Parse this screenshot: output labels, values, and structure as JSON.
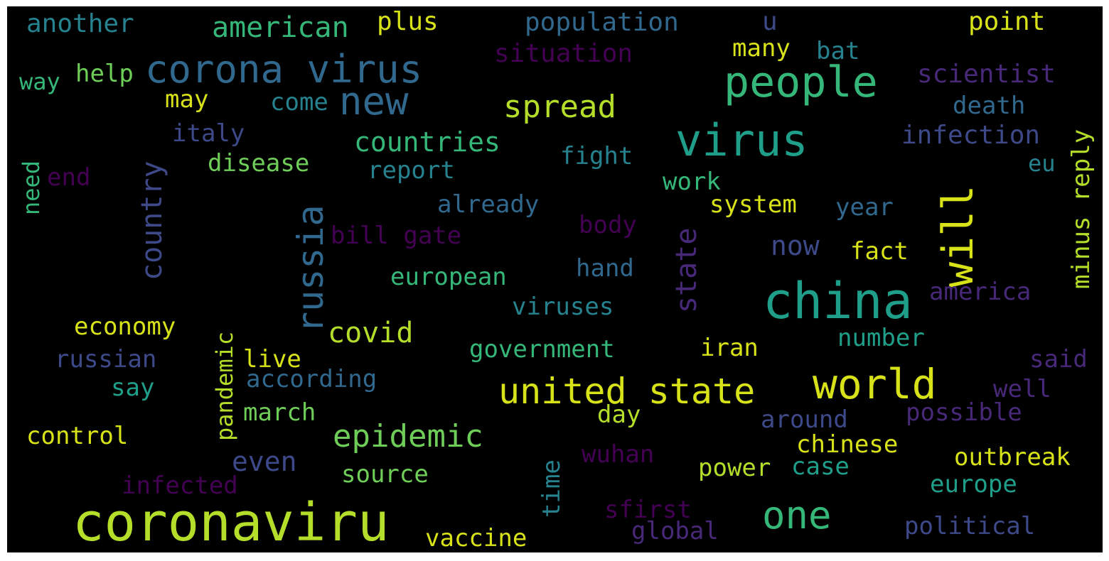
{
  "palette": {
    "background": "#000000",
    "yellow": "#d8e219",
    "lime": "#b5de2b",
    "green": "#6ece58",
    "teal_green": "#35b779",
    "teal": "#1f9e89",
    "cyan": "#26828e",
    "blue": "#31688e",
    "indigo": "#3e4989",
    "purple": "#482878",
    "dark_purple": "#440154"
  },
  "words": {
    "coronaviru": {
      "text": "coronaviru",
      "color": "#b5de2b"
    },
    "china": {
      "text": "china",
      "color": "#1f9e89"
    },
    "virus": {
      "text": "virus",
      "color": "#1f9e89"
    },
    "will": {
      "text": "will",
      "color": "#d8e219"
    },
    "people": {
      "text": "people",
      "color": "#35b779"
    },
    "corona_virus": {
      "text": "corona virus",
      "color": "#31688e"
    },
    "world": {
      "text": "world",
      "color": "#d8e219"
    },
    "united_state": {
      "text": "united state",
      "color": "#d8e219"
    },
    "one": {
      "text": "one",
      "color": "#35b779"
    },
    "new": {
      "text": "new",
      "color": "#31688e"
    },
    "russia": {
      "text": "russia",
      "color": "#31688e"
    },
    "spread": {
      "text": "spread",
      "color": "#b5de2b"
    },
    "epidemic": {
      "text": "epidemic",
      "color": "#6ece58"
    },
    "country": {
      "text": "country",
      "color": "#3e4989"
    },
    "american": {
      "text": "american",
      "color": "#35b779"
    },
    "covid": {
      "text": "covid",
      "color": "#b5de2b"
    },
    "countries": {
      "text": "countries",
      "color": "#35b779"
    },
    "state": {
      "text": "state",
      "color": "#482878"
    },
    "population": {
      "text": "population",
      "color": "#31688e"
    },
    "scientist": {
      "text": "scientist",
      "color": "#482878"
    },
    "infection": {
      "text": "infection",
      "color": "#3e4989"
    },
    "minus_reply": {
      "text": "minus reply",
      "color": "#b5de2b"
    },
    "situation": {
      "text": "situation",
      "color": "#440154"
    },
    "another": {
      "text": "another",
      "color": "#26828e"
    },
    "plus": {
      "text": "plus",
      "color": "#d8e219"
    },
    "u": {
      "text": "u",
      "color": "#3e4989"
    },
    "point": {
      "text": "point",
      "color": "#d8e219"
    },
    "many": {
      "text": "many",
      "color": "#d8e219"
    },
    "bat": {
      "text": "bat",
      "color": "#26828e"
    },
    "way": {
      "text": "way",
      "color": "#35b779"
    },
    "help": {
      "text": "help",
      "color": "#6ece58"
    },
    "may": {
      "text": "may",
      "color": "#d8e219"
    },
    "come": {
      "text": "come",
      "color": "#26828e"
    },
    "death": {
      "text": "death",
      "color": "#31688e"
    },
    "italy": {
      "text": "italy",
      "color": "#3e4989"
    },
    "need": {
      "text": "need",
      "color": "#35b779"
    },
    "end": {
      "text": "end",
      "color": "#440154"
    },
    "disease": {
      "text": "disease",
      "color": "#6ece58"
    },
    "report": {
      "text": "report",
      "color": "#26828e"
    },
    "fight": {
      "text": "fight",
      "color": "#26828e"
    },
    "eu": {
      "text": "eu",
      "color": "#26828e"
    },
    "work": {
      "text": "work",
      "color": "#35b779"
    },
    "already": {
      "text": "already",
      "color": "#31688e"
    },
    "system": {
      "text": "system",
      "color": "#d8e219"
    },
    "year": {
      "text": "year",
      "color": "#31688e"
    },
    "body": {
      "text": "body",
      "color": "#440154"
    },
    "bill_gate": {
      "text": "bill gate",
      "color": "#440154"
    },
    "now": {
      "text": "now",
      "color": "#3e4989"
    },
    "fact": {
      "text": "fact",
      "color": "#d8e219"
    },
    "hand": {
      "text": "hand",
      "color": "#31688e"
    },
    "european": {
      "text": "european",
      "color": "#35b779"
    },
    "america": {
      "text": "america",
      "color": "#482878"
    },
    "viruses": {
      "text": "viruses",
      "color": "#26828e"
    },
    "economy": {
      "text": "economy",
      "color": "#d8e219"
    },
    "pandemic": {
      "text": "pandemic",
      "color": "#b5de2b"
    },
    "number": {
      "text": "number",
      "color": "#1f9e89"
    },
    "government": {
      "text": "government",
      "color": "#35b779"
    },
    "iran": {
      "text": "iran",
      "color": "#d8e219"
    },
    "russian": {
      "text": "russian",
      "color": "#3e4989"
    },
    "live": {
      "text": "live",
      "color": "#d8e219"
    },
    "according": {
      "text": "according",
      "color": "#31688e"
    },
    "said": {
      "text": "said",
      "color": "#482878"
    },
    "say": {
      "text": "say",
      "color": "#1f9e89"
    },
    "well": {
      "text": "well",
      "color": "#482878"
    },
    "march": {
      "text": "march",
      "color": "#6ece58"
    },
    "day": {
      "text": "day",
      "color": "#b5de2b"
    },
    "around": {
      "text": "around",
      "color": "#3e4989"
    },
    "possible": {
      "text": "possible",
      "color": "#482878"
    },
    "control": {
      "text": "control",
      "color": "#d8e219"
    },
    "chinese": {
      "text": "chinese",
      "color": "#d8e219"
    },
    "even": {
      "text": "even",
      "color": "#3e4989"
    },
    "time": {
      "text": "time",
      "color": "#26828e"
    },
    "wuhan": {
      "text": "wuhan",
      "color": "#440154"
    },
    "outbreak": {
      "text": "outbreak",
      "color": "#d8e219"
    },
    "source": {
      "text": "source",
      "color": "#6ece58"
    },
    "power": {
      "text": "power",
      "color": "#b5de2b"
    },
    "case": {
      "text": "case",
      "color": "#1f9e89"
    },
    "infected": {
      "text": "infected",
      "color": "#440154"
    },
    "europe": {
      "text": "europe",
      "color": "#1f9e89"
    },
    "sfirst": {
      "text": "sfirst",
      "color": "#440154"
    },
    "global": {
      "text": "global",
      "color": "#482878"
    },
    "political": {
      "text": "political",
      "color": "#3e4989"
    },
    "vaccine": {
      "text": "vaccine",
      "color": "#d8e219"
    }
  }
}
